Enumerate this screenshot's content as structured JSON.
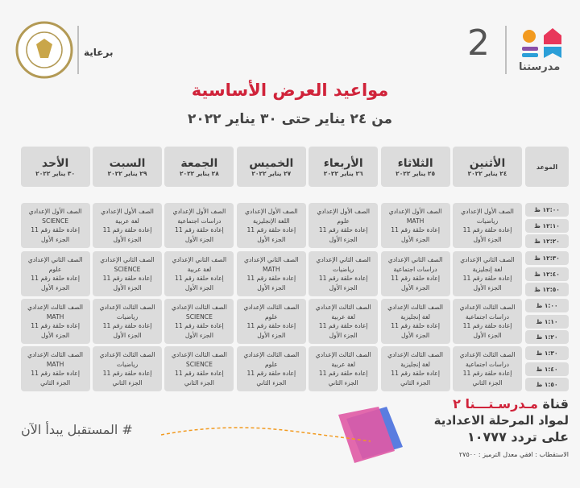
{
  "header": {
    "sponsor_label": "برعاية",
    "brand_name": "مدرستنا",
    "brand_number": "2"
  },
  "title": "مواعيد العرض الأساسية",
  "subtitle": "من ٢٤ يناير حتى ٣٠ يناير ٢٠٢٢",
  "table": {
    "time_header": "الموعد",
    "days": [
      {
        "name": "الأثنين",
        "date": "٢٤ يناير ٢٠٢٢"
      },
      {
        "name": "الثلاثاء",
        "date": "٢٥ يناير ٢٠٢٢"
      },
      {
        "name": "الأربعاء",
        "date": "٢٦ يناير ٢٠٢٢"
      },
      {
        "name": "الخميس",
        "date": "٢٧ يناير ٢٠٢٢"
      },
      {
        "name": "الجمعة",
        "date": "٢٨ يناير ٢٠٢٢"
      },
      {
        "name": "السبت",
        "date": "٢٩ يناير ٢٠٢٢"
      },
      {
        "name": "الأحد",
        "date": "٣٠ يناير ٢٠٢٢"
      }
    ],
    "rows": [
      {
        "times": [
          "١٢:٠٠ ظ",
          "١٢:١٠ ظ",
          "١٢:٢٠ ظ"
        ],
        "cells": [
          [
            "الصف الأول الإعدادي",
            "رياضيات",
            "إعادة حلقة رقم 11",
            "الجزء الأول"
          ],
          [
            "الصف الأول الإعدادي",
            "MATH",
            "إعادة حلقة رقم 11",
            "الجزء الأول"
          ],
          [
            "الصف الأول الإعدادي",
            "علوم",
            "إعادة حلقة رقم 11",
            "الجزء الأول"
          ],
          [
            "الصف الأول الإعدادي",
            "اللغة الإنجليزية",
            "إعادة حلقة رقم 11",
            "الجزء الأول"
          ],
          [
            "الصف الأول الإعدادي",
            "دراسات اجتماعية",
            "إعادة حلقة رقم 11",
            "الجزء الأول"
          ],
          [
            "الصف الأول الإعدادي",
            "لغة عربية",
            "إعادة حلقة رقم 11",
            "الجزء الأول"
          ],
          [
            "الصف الأول الإعدادي",
            "SCIENCE",
            "إعادة حلقة رقم 11",
            "الجزء الأول"
          ]
        ]
      },
      {
        "times": [
          "١٢:٣٠ ظ",
          "١٢:٤٠ ظ",
          "١٢:٥٠ ظ"
        ],
        "cells": [
          [
            "الصف الثاني الإعدادي",
            "لغة إنجليزية",
            "إعادة حلقة رقم 11",
            "الجزء الأول"
          ],
          [
            "الصف الثاني الإعدادي",
            "دراسات اجتماعية",
            "إعادة حلقة رقم 11",
            "الجزء الأول"
          ],
          [
            "الصف الثاني الإعدادي",
            "رياضيات",
            "إعادة حلقة رقم 11",
            "الجزء الأول"
          ],
          [
            "الصف الثاني الإعدادي",
            "MATH",
            "إعادة حلقة رقم 11",
            "الجزء الأول"
          ],
          [
            "الصف الثاني الإعدادي",
            "لغة عربية",
            "إعادة حلقة رقم 11",
            "الجزء الأول"
          ],
          [
            "الصف الثاني الإعدادي",
            "SCIENCE",
            "إعادة حلقة رقم 11",
            "الجزء الأول"
          ],
          [
            "الصف الثاني الإعدادي",
            "علوم",
            "إعادة حلقة رقم 11",
            "الجزء الأول"
          ]
        ]
      },
      {
        "times": [
          "١:٠٠ ظ",
          "١:١٠ ظ",
          "١:٢٠ ظ"
        ],
        "cells": [
          [
            "الصف الثالث الإعدادي",
            "دراسات اجتماعية",
            "إعادة حلقة رقم 11",
            "الجزء الأول"
          ],
          [
            "الصف الثالث الإعدادي",
            "لغة إنجليزية",
            "إعادة حلقة رقم 11",
            "الجزء الأول"
          ],
          [
            "الصف الثالث الإعدادي",
            "لغة عربية",
            "إعادة حلقة رقم 11",
            "الجزء الأول"
          ],
          [
            "الصف الثالث الإعدادي",
            "علوم",
            "إعادة حلقة رقم 11",
            "الجزء الأول"
          ],
          [
            "الصف الثالث الإعدادي",
            "SCIENCE",
            "إعادة حلقة رقم 11",
            "الجزء الأول"
          ],
          [
            "الصف الثالث الإعدادي",
            "رياضيات",
            "إعادة حلقة رقم 11",
            "الجزء الأول"
          ],
          [
            "الصف الثالث الإعدادي",
            "MATH",
            "إعادة حلقة رقم 11",
            "الجزء الأول"
          ]
        ]
      },
      {
        "times": [
          "١:٣٠ ظ",
          "١:٤٠ ظ",
          "١:٥٠ ظ"
        ],
        "cells": [
          [
            "الصف الثالث الإعدادي",
            "دراسات اجتماعية",
            "إعادة حلقة رقم 11",
            "الجزء الثاني"
          ],
          [
            "الصف الثالث الإعدادي",
            "لغة إنجليزية",
            "إعادة حلقة رقم 11",
            "الجزء الثاني"
          ],
          [
            "الصف الثالث الإعدادي",
            "لغة عربية",
            "إعادة حلقة رقم 11",
            "الجزء الثاني"
          ],
          [
            "الصف الثالث الإعدادي",
            "علوم",
            "إعادة حلقة رقم 11",
            "الجزء الثاني"
          ],
          [
            "الصف الثالث الإعدادي",
            "SCIENCE",
            "إعادة حلقة رقم 11",
            "الجزء الثاني"
          ],
          [
            "الصف الثالث الإعدادي",
            "رياضيات",
            "إعادة حلقة رقم 11",
            "الجزء الثاني"
          ],
          [
            "الصف الثالث الإعدادي",
            "MATH",
            "إعادة حلقة رقم 11",
            "الجزء الثاني"
          ]
        ]
      }
    ]
  },
  "footer": {
    "channel_prefix": "قناة",
    "channel_name": "مـدرسـتـــنا ٢",
    "line2": "لمواد المرحلة الاعدادية",
    "line3": "على تردد ١٠٧٧٧",
    "line4": "الاستقطاب : افقي معدل الترميز : ٢٧٥٠٠",
    "hashtag": "# المستقبل يبدأ الآن"
  }
}
